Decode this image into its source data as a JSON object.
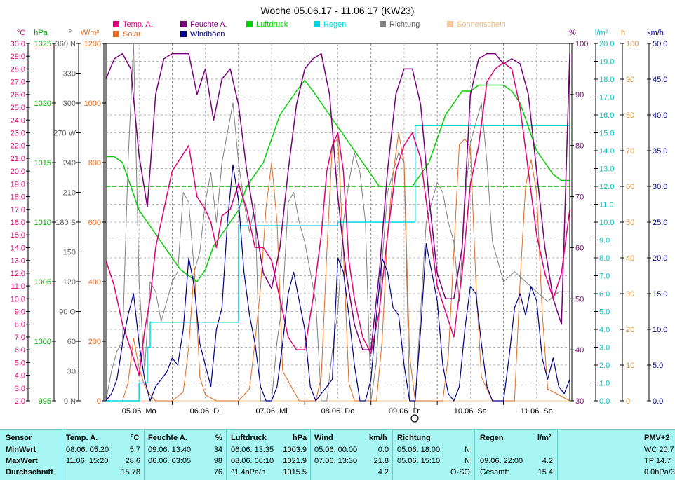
{
  "title": "Woche 05.06.17 - 11.06.17 (KW23)",
  "legend": [
    {
      "key": "temp",
      "label": "Temp. A.",
      "color": "#e0007a"
    },
    {
      "key": "solar",
      "label": "Solar",
      "color": "#e06a20"
    },
    {
      "key": "hum",
      "label": "Feuchte A.",
      "color": "#7a007a"
    },
    {
      "key": "gust",
      "label": "Windböen",
      "color": "#00008a"
    },
    {
      "key": "press",
      "label": "Luftdruck",
      "color": "#00d000"
    },
    {
      "key": "rain",
      "label": "Regen",
      "color": "#00d8e0"
    },
    {
      "key": "dir",
      "label": "Richtung",
      "color": "#808080"
    },
    {
      "key": "sun",
      "label": "Sonnenschein",
      "color": "#f8c890"
    }
  ],
  "units": {
    "temp": "°C",
    "press": "hPa",
    "dir": "°",
    "solar": "W/m²",
    "hum": "%",
    "rain": "l/m²",
    "sun": "h",
    "wind": "km/h"
  },
  "axes": {
    "temp_ticks": [
      "30.0",
      "29.0",
      "28.0",
      "27.0",
      "26.0",
      "25.0",
      "24.0",
      "23.0",
      "22.0",
      "21.0",
      "20.0",
      "19.0",
      "18.0",
      "17.0",
      "16.0",
      "15.0",
      "14.0",
      "13.0",
      "12.0",
      "11.0",
      "10.0",
      "9.0",
      "8.0",
      "7.0",
      "6.0",
      "5.0",
      "4.0",
      "3.0",
      "2.0"
    ],
    "press_ticks": [
      "1025",
      "1020",
      "1015",
      "1010",
      "1005",
      "1000",
      "995"
    ],
    "dir_ticks": [
      "360 N",
      "330",
      "300",
      "270 W",
      "240",
      "210",
      "180 S",
      "150",
      "120",
      "90 O",
      "60",
      "30",
      "0 N"
    ],
    "solar_ticks": [
      "1200",
      "1000",
      "800",
      "600",
      "400",
      "200",
      "0"
    ],
    "hum_ticks": [
      "100",
      "90",
      "80",
      "70",
      "60",
      "50",
      "40",
      "30"
    ],
    "rain_ticks": [
      "20.0",
      "19.0",
      "18.0",
      "17.0",
      "16.0",
      "15.0",
      "14.0",
      "13.0",
      "12.0",
      "11.0",
      "10.0",
      "9.0",
      "8.0",
      "7.0",
      "6.0",
      "5.0",
      "4.0",
      "3.0",
      "2.0",
      "1.0",
      "0.0"
    ],
    "sun_ticks": [
      "100",
      "90",
      "80",
      "70",
      "60",
      "50",
      "40",
      "30",
      "20",
      "10",
      "0"
    ],
    "wind_ticks": [
      "50.0",
      "45.0",
      "40.0",
      "35.0",
      "30.0",
      "25.0",
      "20.0",
      "15.0",
      "10.0",
      "5.0",
      "0.0"
    ],
    "day_labels": [
      "05.06. Mo",
      "06.06. Di",
      "07.06. Mi",
      "08.06. Do",
      "09.06. Fr",
      "10.06. Sa",
      "11.06. So"
    ]
  },
  "chart_data": {
    "type": "line",
    "x_unit": "hours since 05.06. 00:00",
    "x_range": [
      0,
      168
    ],
    "series": [
      {
        "name": "Temp. A.",
        "unit": "°C",
        "axis": "temp",
        "range": [
          2,
          30
        ],
        "x": [
          0,
          3,
          6,
          9,
          12,
          14,
          16,
          18,
          21,
          24,
          27,
          30,
          33,
          36,
          38,
          40,
          42,
          45,
          48,
          51,
          54,
          57,
          60,
          63,
          66,
          69,
          72,
          75,
          78,
          80,
          82,
          84,
          86,
          88,
          90,
          93,
          96,
          99,
          102,
          105,
          108,
          111,
          114,
          117,
          120,
          123,
          126,
          129,
          132,
          135,
          138,
          141,
          144,
          147,
          150,
          153,
          156,
          159,
          162,
          165,
          168
        ],
        "y": [
          13,
          11,
          8,
          6,
          4,
          7.5,
          10,
          14,
          17,
          20,
          21,
          22,
          18,
          17,
          16,
          14,
          16.5,
          17,
          19,
          17,
          14,
          14,
          13,
          10,
          7,
          6,
          6,
          10,
          15,
          20,
          22,
          23,
          20,
          13,
          10,
          7,
          5.7,
          9,
          15,
          20,
          22,
          23,
          21,
          16,
          11,
          9,
          7,
          12,
          19,
          22,
          27,
          28,
          28.5,
          28,
          25,
          20,
          15,
          12,
          10,
          12,
          17
        ]
      },
      {
        "name": "Feuchte A.",
        "unit": "%",
        "axis": "hum",
        "range": [
          30,
          100
        ],
        "x": [
          0,
          3,
          6,
          9,
          12,
          15,
          18,
          21,
          24,
          27,
          30,
          33,
          36,
          39,
          42,
          45,
          48,
          51,
          54,
          57,
          60,
          63,
          66,
          69,
          72,
          75,
          78,
          81,
          84,
          87,
          90,
          93,
          96,
          99,
          102,
          105,
          108,
          111,
          114,
          117,
          120,
          123,
          126,
          129,
          132,
          135,
          138,
          141,
          144,
          147,
          150,
          153,
          156,
          159,
          162,
          165,
          168
        ],
        "y": [
          93,
          97,
          98,
          95,
          78,
          68,
          90,
          97,
          98,
          98,
          98,
          90,
          95,
          85,
          93,
          95,
          88,
          75,
          65,
          55,
          52,
          60,
          75,
          88,
          95,
          97,
          98,
          90,
          70,
          55,
          45,
          40,
          40,
          55,
          75,
          90,
          95,
          95,
          88,
          70,
          55,
          50,
          50,
          60,
          90,
          97,
          98,
          98,
          96,
          97,
          96,
          90,
          75,
          60,
          50,
          45,
          98
        ]
      },
      {
        "name": "Luftdruck",
        "unit": "hPa",
        "axis": "press",
        "range": [
          995,
          1025
        ],
        "x": [
          0,
          3,
          6,
          9,
          12,
          15,
          18,
          21,
          24,
          27,
          30,
          33,
          36,
          39,
          42,
          45,
          48,
          51,
          54,
          57,
          60,
          63,
          66,
          69,
          72,
          75,
          78,
          81,
          84,
          87,
          90,
          93,
          96,
          99,
          102,
          105,
          108,
          111,
          114,
          117,
          120,
          123,
          126,
          129,
          132,
          135,
          138,
          141,
          144,
          147,
          150,
          153,
          156,
          159,
          162,
          165,
          168
        ],
        "y": [
          1015.5,
          1015.5,
          1015,
          1013,
          1011,
          1010,
          1009,
          1008,
          1007,
          1006,
          1005.5,
          1005,
          1006,
          1008,
          1009,
          1010,
          1011,
          1013,
          1014,
          1015,
          1017,
          1019,
          1020,
          1021,
          1021.9,
          1021,
          1020,
          1019,
          1018,
          1017,
          1016,
          1015,
          1014,
          1013,
          1013,
          1013,
          1013,
          1013,
          1014,
          1015,
          1017,
          1019,
          1020,
          1021,
          1021,
          1021.5,
          1021.5,
          1021.5,
          1021.5,
          1021,
          1020,
          1018,
          1016,
          1015,
          1014,
          1013.5,
          1013.5
        ]
      },
      {
        "name": "Regen",
        "unit": "l/m²",
        "axis": "rain",
        "range": [
          0,
          20
        ],
        "x": [
          0,
          11,
          12,
          15,
          16,
          24,
          36,
          48,
          63,
          84,
          96,
          111,
          112,
          117,
          168
        ],
        "y": [
          0,
          0,
          1,
          3,
          4.4,
          4.4,
          4.4,
          9.8,
          9.8,
          10,
          10,
          10,
          15.4,
          15.4,
          15.4
        ]
      },
      {
        "name": "Solar",
        "unit": "W/m²",
        "axis": "solar",
        "range": [
          0,
          1200
        ],
        "x": [
          0,
          6,
          8,
          10,
          12,
          14,
          16,
          18,
          24,
          28,
          30,
          32,
          34,
          36,
          40,
          44,
          48,
          52,
          54,
          56,
          58,
          60,
          62,
          64,
          70,
          72,
          76,
          78,
          80,
          82,
          84,
          86,
          88,
          90,
          96,
          98,
          100,
          102,
          104,
          106,
          108,
          110,
          112,
          116,
          120,
          122,
          124,
          126,
          128,
          130,
          132,
          134,
          136,
          140,
          144,
          146,
          148,
          150,
          152,
          154,
          156,
          158,
          160,
          168
        ],
        "y": [
          0,
          0,
          60,
          210,
          110,
          50,
          20,
          0,
          0,
          30,
          180,
          450,
          80,
          20,
          0,
          0,
          0,
          40,
          200,
          380,
          650,
          800,
          600,
          100,
          0,
          0,
          0,
          80,
          500,
          860,
          880,
          500,
          60,
          0,
          0,
          0,
          200,
          560,
          760,
          900,
          800,
          150,
          0,
          0,
          0,
          0,
          150,
          500,
          860,
          880,
          850,
          400,
          80,
          0,
          0,
          0,
          0,
          400,
          720,
          810,
          700,
          300,
          40,
          0
        ]
      },
      {
        "name": "Windböen",
        "unit": "km/h",
        "axis": "wind",
        "range": [
          0,
          50
        ],
        "x": [
          0,
          2,
          4,
          6,
          8,
          10,
          12,
          14,
          16,
          18,
          20,
          22,
          24,
          26,
          28,
          30,
          32,
          34,
          36,
          38,
          40,
          42,
          44,
          46,
          48,
          50,
          52,
          54,
          56,
          58,
          60,
          62,
          64,
          66,
          68,
          70,
          72,
          74,
          76,
          78,
          80,
          82,
          84,
          86,
          88,
          90,
          92,
          94,
          96,
          98,
          100,
          102,
          104,
          106,
          108,
          110,
          112,
          114,
          116,
          118,
          120,
          122,
          124,
          126,
          128,
          130,
          132,
          134,
          136,
          138,
          140,
          142,
          144,
          146,
          148,
          150,
          152,
          154,
          156,
          158,
          160,
          162,
          164,
          166,
          168
        ],
        "y": [
          0,
          1,
          3,
          8,
          12,
          15,
          8,
          3,
          0,
          2,
          3,
          4,
          6,
          5,
          10,
          20,
          16,
          8,
          5,
          2,
          10,
          13,
          25,
          33,
          28,
          18,
          12,
          8,
          2,
          0,
          0,
          2,
          8,
          15,
          18,
          14,
          10,
          2,
          0,
          1,
          2,
          3,
          20,
          18,
          12,
          5,
          0,
          0,
          3,
          12,
          20,
          18,
          13,
          12,
          5,
          0,
          0,
          10,
          22,
          18,
          14,
          5,
          1,
          0,
          2,
          10,
          16,
          15,
          8,
          2,
          0,
          0,
          0,
          6,
          13,
          15,
          12,
          16,
          14,
          6,
          3,
          6,
          2,
          1,
          3
        ]
      },
      {
        "name": "Richtung",
        "unit": "°",
        "axis": "dir",
        "range": [
          0,
          360
        ],
        "x": [
          0,
          2,
          4,
          6,
          8,
          10,
          12,
          14,
          16,
          18,
          20,
          22,
          24,
          26,
          28,
          30,
          32,
          34,
          36,
          38,
          40,
          42,
          44,
          46,
          48,
          50,
          52,
          54,
          56,
          58,
          60,
          62,
          64,
          66,
          68,
          70,
          72,
          74,
          76,
          78,
          80,
          82,
          84,
          86,
          88,
          90,
          92,
          94,
          96,
          98,
          100,
          102,
          104,
          106,
          108,
          110,
          112,
          114,
          116,
          118,
          120,
          122,
          124,
          126,
          128,
          130,
          132,
          134,
          136,
          138,
          140,
          144,
          148,
          152,
          156,
          160,
          164,
          168
        ],
        "y": [
          0,
          30,
          50,
          60,
          240,
          360,
          120,
          30,
          120,
          110,
          80,
          100,
          120,
          130,
          210,
          200,
          130,
          150,
          200,
          230,
          180,
          240,
          270,
          300,
          240,
          200,
          170,
          200,
          0,
          0,
          0,
          60,
          100,
          200,
          210,
          180,
          160,
          130,
          100,
          0,
          0,
          50,
          90,
          180,
          220,
          250,
          230,
          180,
          0,
          40,
          140,
          210,
          230,
          250,
          240,
          0,
          0,
          90,
          180,
          200,
          220,
          210,
          180,
          160,
          100,
          200,
          260,
          280,
          300,
          240,
          160,
          120,
          130,
          120,
          110,
          100,
          110,
          110
        ]
      },
      {
        "name": "Sonnenschein",
        "unit": "h",
        "axis": "sun",
        "range": [
          0,
          100
        ],
        "x": [
          0,
          168
        ],
        "y": [
          0,
          0
        ]
      }
    ],
    "reference_lines": [
      {
        "axis": "press",
        "value": 1013,
        "style": "dashed",
        "color": "#00b000"
      }
    ]
  },
  "stats": {
    "sensor": {
      "hdr": "Sensor",
      "rows": [
        "MinWert",
        "MaxWert",
        "Durchschnitt"
      ]
    },
    "temp": {
      "hdr": "Temp. A.",
      "unit": "°C",
      "rows": [
        [
          "08.06.  05:20",
          "5.7"
        ],
        [
          "11.06.  15:20",
          "28.6"
        ],
        [
          "",
          "15.78"
        ]
      ]
    },
    "hum": {
      "hdr": "Feuchte A.",
      "unit": "%",
      "rows": [
        [
          "09.06.  13:40",
          "34"
        ],
        [
          "06.06.  03:05",
          "98"
        ],
        [
          "",
          "76"
        ]
      ]
    },
    "press": {
      "hdr": "Luftdruck",
      "unit": "hPa",
      "rows": [
        [
          "06.06.  13:35",
          "1003.9"
        ],
        [
          "08.06.  06:10",
          "1021.9"
        ],
        [
          "^1.4hPa/h",
          "1015.5"
        ]
      ]
    },
    "wind": {
      "hdr": "Wind",
      "unit": "km/h",
      "rows": [
        [
          "05.06.  00:00",
          "0.0"
        ],
        [
          "07.06.  13:30",
          "21.8"
        ],
        [
          "",
          "4.2"
        ]
      ]
    },
    "dir": {
      "hdr": "Richtung",
      "rows": [
        [
          "05.06.  18:00",
          "N"
        ],
        [
          "05.06.  15:10",
          "N"
        ],
        [
          "",
          "O-SO"
        ]
      ]
    },
    "rain": {
      "hdr": "Regen",
      "unit": "l/m²",
      "rows": [
        [
          "",
          ""
        ],
        [
          "09.06.  22:00",
          "4.2"
        ],
        [
          "Gesamt:",
          "15.4"
        ]
      ]
    },
    "pmv": {
      "hdr": "PMV+2",
      "rows": [
        "WC 20.7",
        "TP 14.7",
        "0.0hPa/3"
      ]
    }
  }
}
